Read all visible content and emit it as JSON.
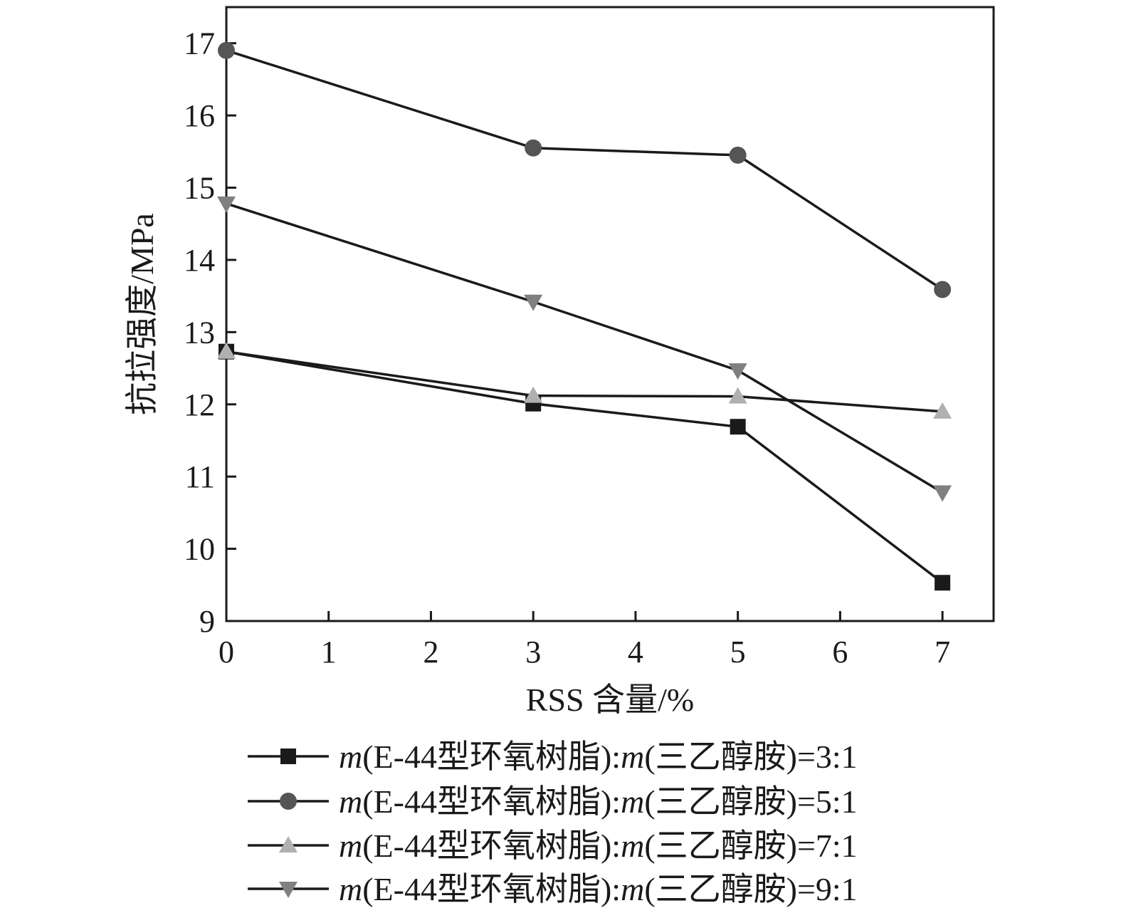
{
  "chart_data": {
    "type": "line",
    "xlabel": "RSS 含量/%",
    "ylabel": "抗拉强度/MPa",
    "xlim": [
      0,
      7.5
    ],
    "ylim": [
      9,
      17.5
    ],
    "x_ticks": [
      "0",
      "1",
      "2",
      "3",
      "4",
      "5",
      "6",
      "7"
    ],
    "y_ticks": [
      "9",
      "10",
      "11",
      "12",
      "13",
      "14",
      "15",
      "16",
      "17"
    ],
    "grid": false,
    "legend_position": "bottom",
    "x": [
      0,
      3,
      5,
      7
    ],
    "series": [
      {
        "name_prefix": "m",
        "name_text": "(E-44型环氧树脂):",
        "name_prefix2": "m",
        "name_suffix": "(三乙醇胺)=3:1",
        "marker": "square",
        "color": "#1a1a1a",
        "values": [
          12.73,
          12.01,
          11.69,
          9.53
        ]
      },
      {
        "name_prefix": "m",
        "name_text": "(E-44型环氧树脂):",
        "name_prefix2": "m",
        "name_suffix": "(三乙醇胺)=5:1",
        "marker": "circle",
        "color": "#555555",
        "values": [
          16.9,
          15.55,
          15.45,
          13.59
        ]
      },
      {
        "name_prefix": "m",
        "name_text": "(E-44型环氧树脂):",
        "name_prefix2": "m",
        "name_suffix": "(三乙醇胺)=7:1",
        "marker": "triangle-up",
        "color": "#b0b0b0",
        "values": [
          12.73,
          12.12,
          12.11,
          11.9
        ]
      },
      {
        "name_prefix": "m",
        "name_text": "(E-44型环氧树脂):",
        "name_prefix2": "m",
        "name_suffix": "(三乙醇胺)=9:1",
        "marker": "triangle-down",
        "color": "#808080",
        "values": [
          14.78,
          13.42,
          12.47,
          10.78
        ]
      }
    ]
  }
}
